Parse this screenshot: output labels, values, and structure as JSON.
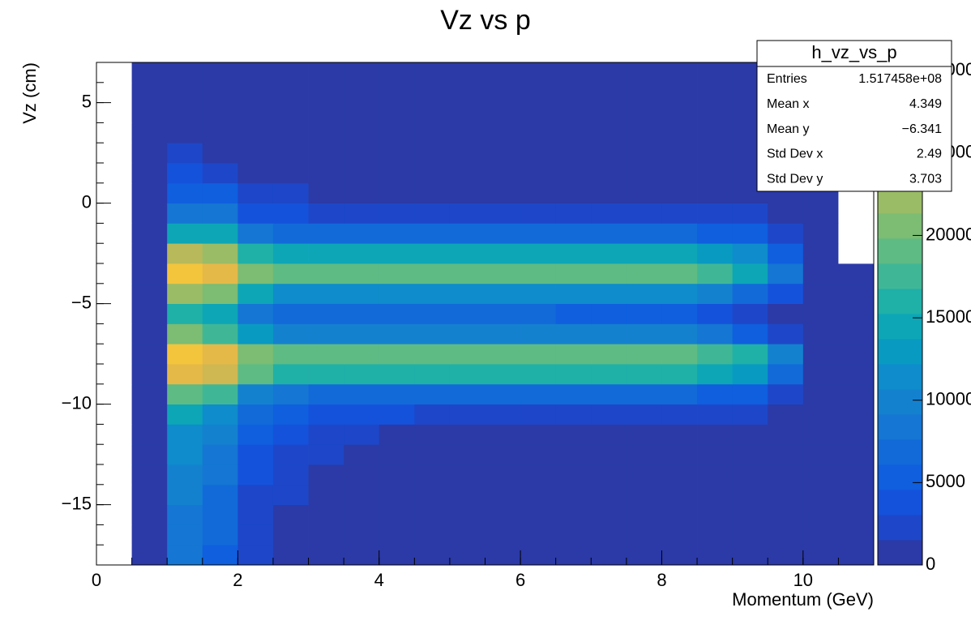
{
  "chart_data": {
    "type": "heatmap",
    "title": "Vz vs p",
    "x_label": "Momentum (GeV)",
    "y_label": "Vz (cm)",
    "xlim": [
      0,
      11
    ],
    "xticks": [
      0,
      2,
      4,
      6,
      8,
      10
    ],
    "ylim": [
      -18,
      7
    ],
    "yticks": [
      {
        "value": -15,
        "label": "−15"
      },
      {
        "value": -10,
        "label": "−10"
      },
      {
        "value": -5,
        "label": "−5"
      },
      0,
      5
    ],
    "zlim": [
      0,
      30500
    ],
    "zticks": [
      0,
      5000,
      10000,
      15000,
      20000,
      25000,
      30000
    ],
    "palette": [
      "#2b3aa7",
      "#1d47c8",
      "#1552dc",
      "#0f5fdf",
      "#126ad9",
      "#1576d3",
      "#1481cf",
      "#0e8ccb",
      "#099ac2",
      "#0da6b7",
      "#1fb0a8",
      "#3fb796",
      "#5ebb84",
      "#7cbc73",
      "#9abc66",
      "#b7b95b",
      "#cfb752",
      "#e4b948",
      "#f3c53c",
      "#f8d931"
    ],
    "x_bins": [
      0,
      0.5,
      1,
      1.5,
      2,
      2.5,
      3,
      3.5,
      4,
      4.5,
      5,
      5.5,
      6,
      6.5,
      7,
      7.5,
      8,
      8.5,
      9,
      9.5,
      10,
      10.5,
      11
    ],
    "y_bins": [
      -18,
      -17,
      -16,
      -15,
      -14,
      -13,
      -12,
      -11,
      -10,
      -9,
      -8,
      -7,
      -6,
      -5,
      -4,
      -3,
      -2,
      -1,
      0,
      1,
      2,
      3,
      4,
      5,
      6,
      7
    ],
    "values": [
      [
        0,
        300,
        8000,
        6000,
        2000,
        500,
        500,
        500,
        500,
        500,
        500,
        500,
        500,
        500,
        500,
        500,
        500,
        500,
        500,
        500,
        500,
        200
      ],
      [
        0,
        300,
        8500,
        6500,
        2200,
        500,
        500,
        500,
        500,
        500,
        500,
        500,
        500,
        500,
        500,
        500,
        500,
        500,
        500,
        500,
        500,
        200
      ],
      [
        0,
        300,
        9000,
        7000,
        2500,
        1500,
        500,
        500,
        500,
        500,
        500,
        500,
        500,
        500,
        500,
        500,
        500,
        500,
        500,
        500,
        500,
        200
      ],
      [
        0,
        300,
        9500,
        7500,
        3000,
        1700,
        600,
        600,
        600,
        600,
        600,
        600,
        600,
        600,
        600,
        600,
        600,
        600,
        600,
        600,
        600,
        200
      ],
      [
        0,
        300,
        10000,
        8500,
        3500,
        2000,
        1400,
        700,
        700,
        700,
        700,
        700,
        700,
        700,
        700,
        700,
        700,
        700,
        700,
        700,
        700,
        200
      ],
      [
        0,
        300,
        11000,
        9000,
        4000,
        2500,
        1800,
        800,
        800,
        800,
        800,
        800,
        800,
        800,
        800,
        800,
        800,
        800,
        800,
        800,
        800,
        200
      ],
      [
        0,
        300,
        12000,
        10500,
        5000,
        3500,
        2500,
        2000,
        1000,
        1000,
        1000,
        1000,
        1000,
        1000,
        1000,
        1000,
        1000,
        1000,
        1000,
        1000,
        1000,
        200
      ],
      [
        0,
        300,
        14000,
        12000,
        6500,
        5000,
        3500,
        3300,
        3100,
        3000,
        2900,
        2800,
        2700,
        2600,
        2500,
        2500,
        2400,
        2200,
        1800,
        1000,
        400,
        200
      ],
      [
        0,
        300,
        19000,
        17000,
        10500,
        8500,
        7000,
        7000,
        7000,
        7000,
        7000,
        7000,
        7000,
        7000,
        7000,
        7000,
        7000,
        6000,
        5000,
        2500,
        500,
        200
      ],
      [
        0,
        300,
        27000,
        25000,
        18500,
        16500,
        15500,
        15500,
        15500,
        15500,
        15500,
        15500,
        15500,
        15500,
        15500,
        15500,
        15500,
        14500,
        12500,
        7500,
        500,
        200
      ],
      [
        0,
        300,
        28000,
        26500,
        20500,
        19000,
        19000,
        19000,
        19000,
        19000,
        19000,
        19000,
        19000,
        19000,
        19000,
        19000,
        19000,
        17500,
        15500,
        10000,
        600,
        200
      ],
      [
        0,
        300,
        20000,
        18000,
        12500,
        10500,
        9500,
        9500,
        9500,
        9500,
        9500,
        9500,
        9500,
        9500,
        9500,
        9500,
        9500,
        8000,
        6000,
        3000,
        500,
        200
      ],
      [
        0,
        300,
        16000,
        14000,
        9000,
        7500,
        6500,
        6500,
        6500,
        6500,
        6500,
        6500,
        6500,
        6000,
        6000,
        6000,
        6000,
        4500,
        2500,
        1200,
        400,
        200
      ],
      [
        0,
        300,
        22000,
        20000,
        14000,
        12000,
        11000,
        11000,
        11000,
        11000,
        11000,
        11000,
        11000,
        11000,
        11000,
        11000,
        11000,
        9500,
        7000,
        3500,
        500,
        200
      ],
      [
        0,
        300,
        28500,
        27000,
        21000,
        19500,
        19000,
        19000,
        19000,
        19000,
        19000,
        19000,
        19000,
        19000,
        19000,
        19000,
        19000,
        17500,
        15000,
        9000,
        600,
        200
      ],
      [
        0,
        300,
        24000,
        22000,
        16000,
        14500,
        14000,
        14000,
        14000,
        14000,
        14000,
        14000,
        14000,
        14000,
        14000,
        14000,
        14000,
        13000,
        11000,
        6000,
        500,
        0
      ],
      [
        0,
        300,
        15000,
        14000,
        9000,
        7500,
        7000,
        7000,
        7000,
        7000,
        6500,
        6500,
        6500,
        6500,
        6500,
        6500,
        6500,
        6000,
        5000,
        2500,
        500,
        0
      ],
      [
        0,
        300,
        9000,
        8000,
        4500,
        3500,
        3000,
        3000,
        3000,
        3000,
        2500,
        2500,
        2500,
        2500,
        2500,
        2000,
        2000,
        2000,
        2000,
        1200,
        500,
        0
      ],
      [
        0,
        300,
        6000,
        5000,
        2500,
        1800,
        1200,
        1200,
        1200,
        1200,
        700,
        700,
        700,
        700,
        700,
        700,
        700,
        700,
        700,
        700,
        700,
        0
      ],
      [
        0,
        300,
        4000,
        3000,
        1500,
        500,
        500,
        500,
        500,
        500,
        500,
        500,
        500,
        500,
        500,
        500,
        500,
        500,
        500,
        500,
        500,
        0
      ],
      [
        0,
        300,
        2000,
        1500,
        500,
        500,
        500,
        500,
        500,
        500,
        500,
        500,
        500,
        500,
        500,
        500,
        500,
        500,
        500,
        500,
        500,
        0
      ],
      [
        0,
        300,
        500,
        500,
        500,
        500,
        500,
        500,
        500,
        500,
        500,
        500,
        500,
        500,
        500,
        500,
        500,
        500,
        500,
        500,
        500,
        0
      ],
      [
        0,
        300,
        500,
        500,
        500,
        500,
        500,
        500,
        500,
        500,
        500,
        500,
        500,
        500,
        500,
        500,
        500,
        500,
        500,
        500,
        500,
        0
      ],
      [
        0,
        300,
        500,
        500,
        500,
        500,
        500,
        500,
        500,
        500,
        500,
        500,
        500,
        500,
        500,
        500,
        500,
        500,
        500,
        500,
        500,
        0
      ],
      [
        0,
        300,
        500,
        500,
        500,
        500,
        500,
        500,
        500,
        500,
        500,
        500,
        500,
        500,
        500,
        500,
        500,
        500,
        500,
        500,
        500,
        0
      ]
    ],
    "stats_box": {
      "title": "h_vz_vs_p",
      "rows": [
        [
          "Entries",
          "1.517458e+08"
        ],
        [
          "Mean x",
          "4.349"
        ],
        [
          "Mean y",
          "−6.341"
        ],
        [
          "Std Dev x",
          "2.49"
        ],
        [
          "Std Dev y",
          "3.703"
        ]
      ]
    }
  }
}
